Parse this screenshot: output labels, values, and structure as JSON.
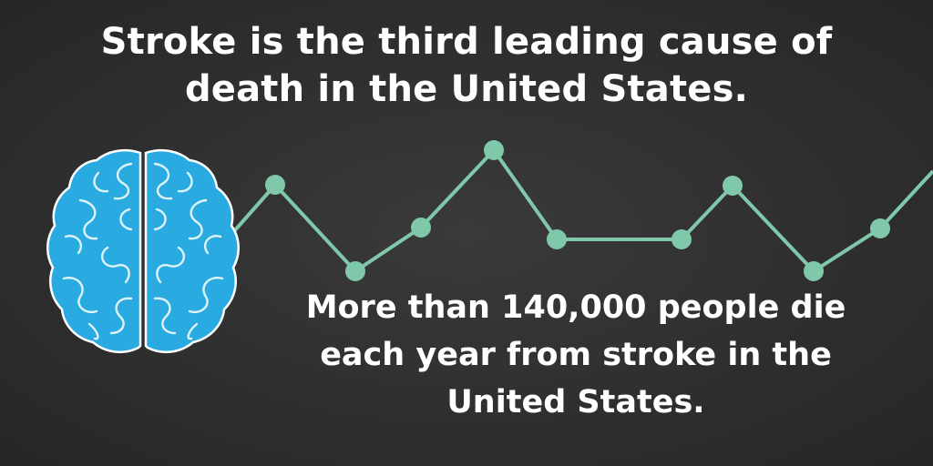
{
  "headline": {
    "line1": "Stroke is the third leading cause of",
    "line2": "death in the United States."
  },
  "subtext": {
    "line1": "More than 140,000 people die",
    "line2": "each year from stroke in the",
    "line3": "United States."
  },
  "illustration": {
    "icon": "brain-icon",
    "brain_color": "#29abe2",
    "brain_outline": "#ffffff",
    "brain_fold_color": "#dff3fb"
  },
  "pulse_line": {
    "color": "#7fc8a9"
  },
  "colors": {
    "background": "#333333",
    "text": "#ffffff"
  }
}
